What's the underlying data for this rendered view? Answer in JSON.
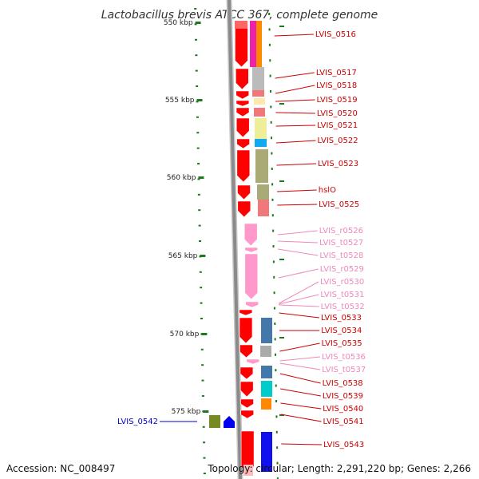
{
  "title": "Lactobacillus brevis ATCC 367, complete genome",
  "footer": {
    "accession": "Accession: NC_008497",
    "topology": "Topology: circular; Length: 2,291,220 bp; Genes: 2,266"
  },
  "colors": {
    "backbone": "#888888",
    "tick": "#1b7a1b",
    "protein": "#ff0000",
    "rna": "#ff99cc",
    "label_protein": "#cc0000",
    "label_rna": "#ee88bb",
    "label_left": "#0000cc"
  },
  "ruler": [
    "550 kbp",
    "555 kbp",
    "560 kbp",
    "565 kbp",
    "570 kbp",
    "575 kbp"
  ],
  "gene_labels": [
    {
      "text": "LVIS_0516",
      "kind": "protein"
    },
    {
      "text": "LVIS_0517",
      "kind": "protein"
    },
    {
      "text": "LVIS_0518",
      "kind": "protein"
    },
    {
      "text": "LVIS_0519",
      "kind": "protein"
    },
    {
      "text": "LVIS_0520",
      "kind": "protein"
    },
    {
      "text": "LVIS_0521",
      "kind": "protein"
    },
    {
      "text": "LVIS_0522",
      "kind": "protein"
    },
    {
      "text": "LVIS_0523",
      "kind": "protein"
    },
    {
      "text": "hslO",
      "kind": "protein"
    },
    {
      "text": "LVIS_0525",
      "kind": "protein"
    },
    {
      "text": "LVIS_r0526",
      "kind": "rna"
    },
    {
      "text": "LVIS_t0527",
      "kind": "rna"
    },
    {
      "text": "LVIS_t0528",
      "kind": "rna"
    },
    {
      "text": "LVIS_r0529",
      "kind": "rna"
    },
    {
      "text": "LVIS_r0530",
      "kind": "rna"
    },
    {
      "text": "LVIS_t0531",
      "kind": "rna"
    },
    {
      "text": "LVIS_t0532",
      "kind": "rna"
    },
    {
      "text": "LVIS_0533",
      "kind": "protein"
    },
    {
      "text": "LVIS_0534",
      "kind": "protein"
    },
    {
      "text": "LVIS_0535",
      "kind": "protein"
    },
    {
      "text": "LVIS_t0536",
      "kind": "rna"
    },
    {
      "text": "LVIS_t0537",
      "kind": "rna"
    },
    {
      "text": "LVIS_0538",
      "kind": "protein"
    },
    {
      "text": "LVIS_0539",
      "kind": "protein"
    },
    {
      "text": "LVIS_0540",
      "kind": "protein"
    },
    {
      "text": "LVIS_0541",
      "kind": "protein"
    },
    {
      "text": "LVIS_0543",
      "kind": "protein"
    }
  ],
  "left_label": {
    "text": "LVIS_0542",
    "kind": "left"
  }
}
